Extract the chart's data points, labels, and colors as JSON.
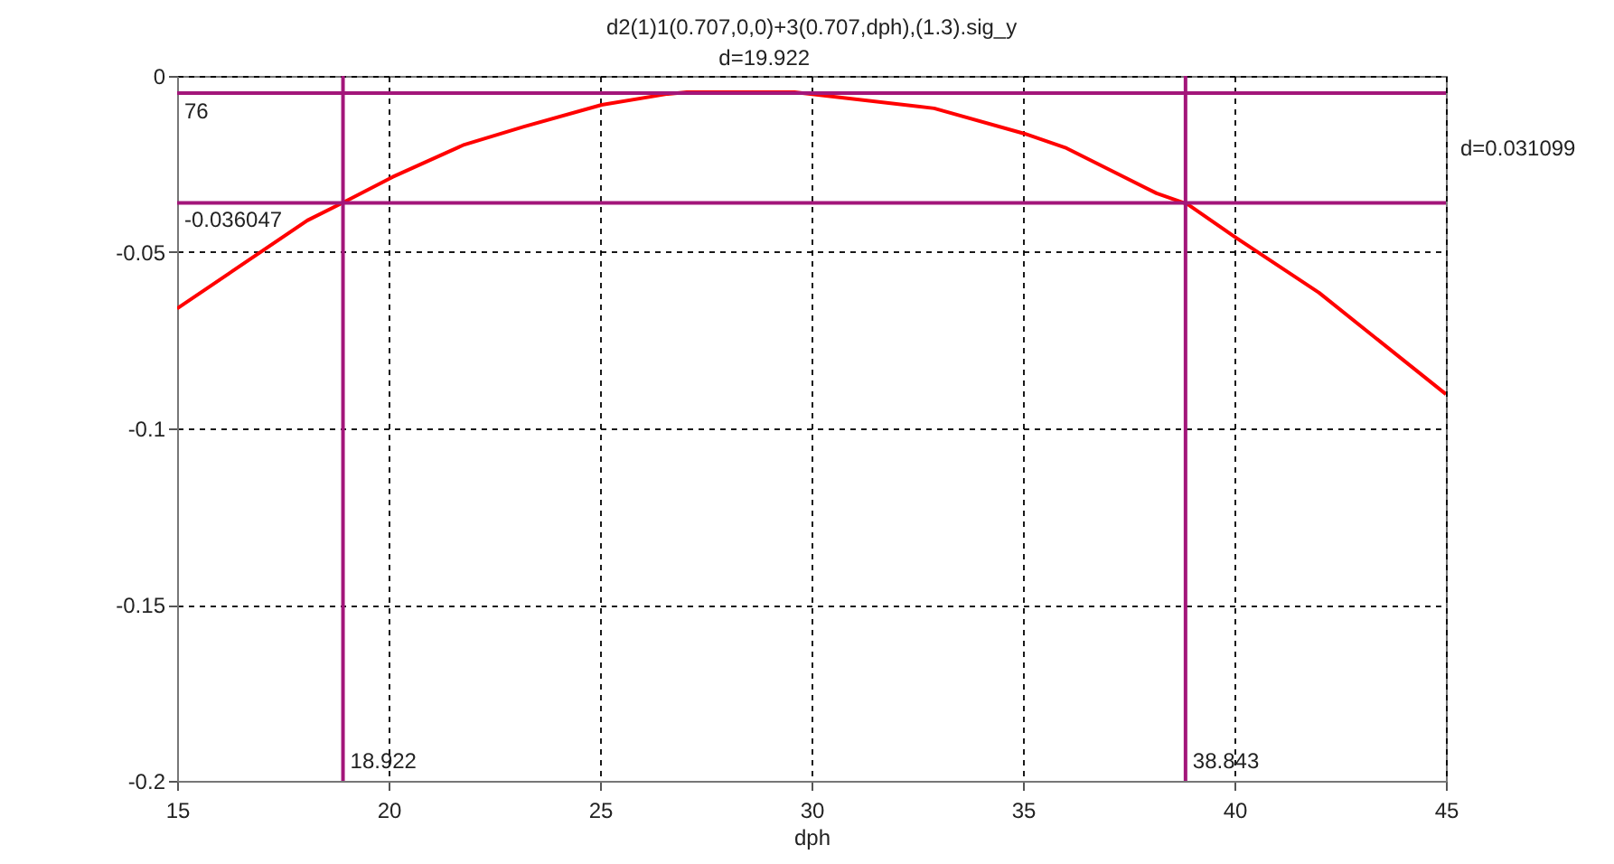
{
  "chart_data": {
    "type": "line",
    "title": "d2(1)1(0.707,0,0)+3(0.707,dph),(1.3).sig_y",
    "xlabel": "dph",
    "x": [
      15,
      18.08,
      18.93,
      20.09,
      21.79,
      23.2,
      25.04,
      26.6,
      27.05,
      29.6,
      32.9,
      35.04,
      36.03,
      37.31,
      38.16,
      38.89,
      40,
      42,
      45
    ],
    "series": [
      {
        "color": "#ff0000",
        "values": [
          -0.066,
          -0.041,
          -0.0359,
          -0.0287,
          -0.0195,
          -0.0144,
          -0.0082,
          -0.0051,
          -0.0046,
          -0.0046,
          -0.0092,
          -0.0164,
          -0.0205,
          -0.0282,
          -0.0333,
          -0.0364,
          -0.0456,
          -0.0615,
          -0.0903
        ]
      }
    ],
    "xlim": [
      15,
      45
    ],
    "ylim": [
      -0.2,
      0
    ],
    "xticks": [
      15,
      20,
      25,
      30,
      35,
      40,
      45
    ],
    "yticks": [
      -0.2,
      -0.15,
      -0.1,
      -0.05,
      0
    ],
    "grid": true,
    "ref_lines": [
      {
        "axis": "x",
        "value": 18.922,
        "label": "18.922",
        "color": "#a3167a"
      },
      {
        "axis": "x",
        "value": 38.843,
        "label": "38.843",
        "color": "#a3167a"
      },
      {
        "axis": "y",
        "value": -0.036047,
        "label": "-0.036047",
        "color": "#a3167a"
      },
      {
        "axis": "y",
        "value": -0.0049,
        "label": null,
        "color": "#a3167a"
      }
    ],
    "annotations": [
      "d=19.922",
      "d=0.031099",
      "76"
    ]
  }
}
